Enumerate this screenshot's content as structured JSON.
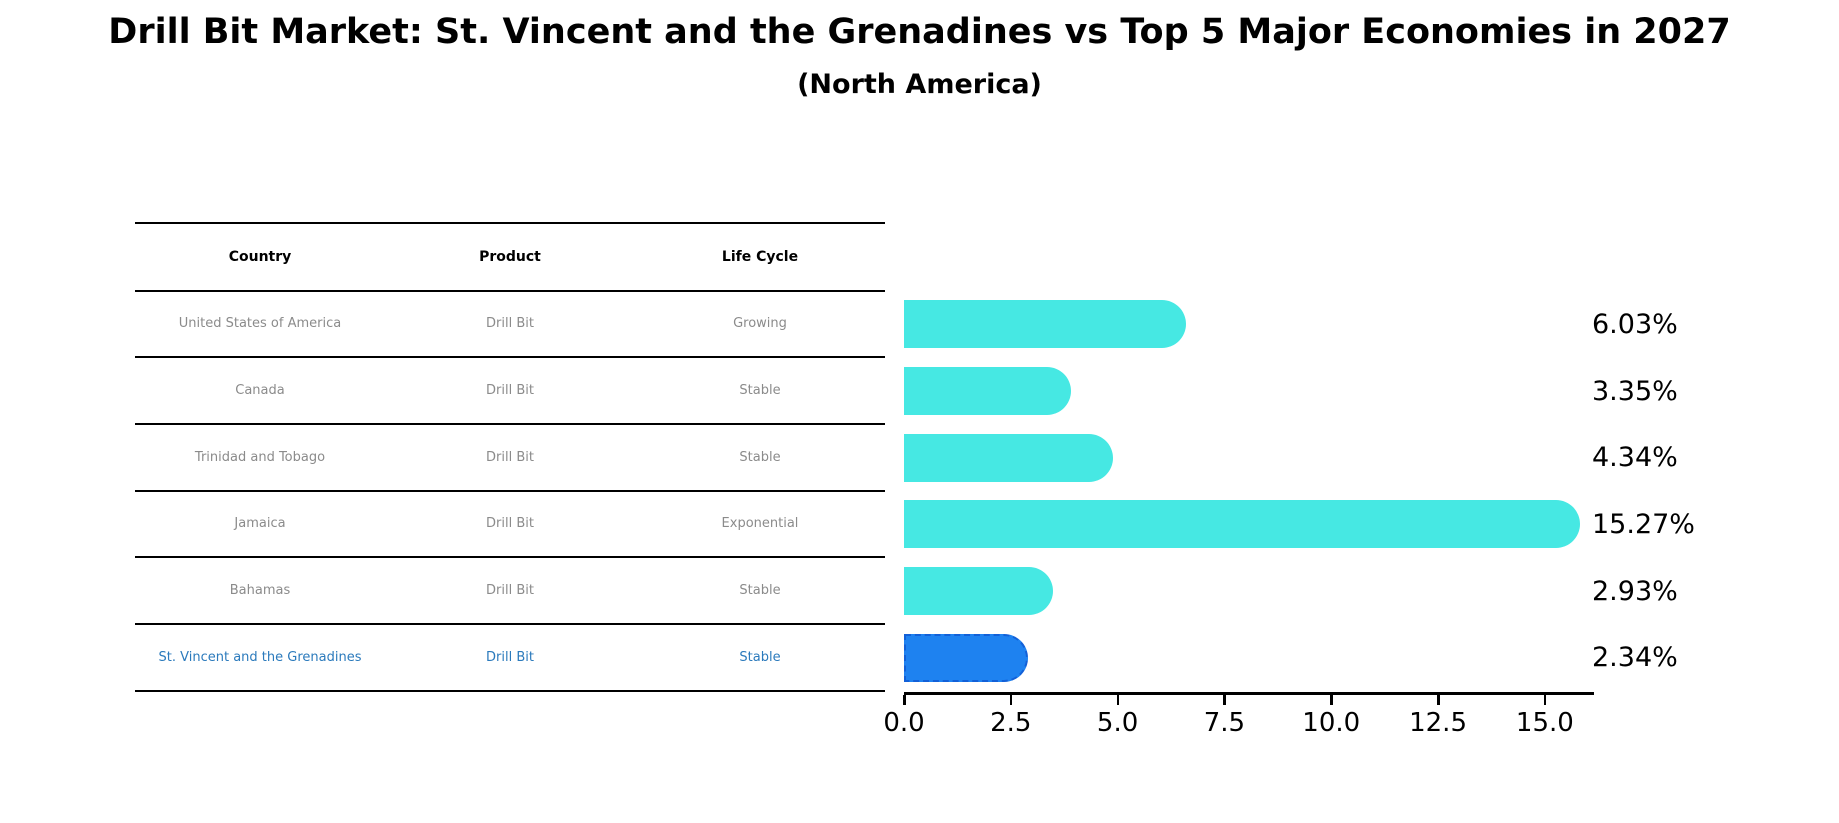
{
  "page": {
    "title": "Drill Bit Market: St. Vincent and the Grenadines vs Top 5 Major Economies in 2027",
    "subtitle": "(North America)"
  },
  "table": {
    "headers": [
      "Country",
      "Product",
      "Life Cycle"
    ],
    "rows": [
      {
        "country": "United States of America",
        "product": "Drill Bit",
        "life_cycle": "Growing",
        "highlight": false
      },
      {
        "country": "Canada",
        "product": "Drill Bit",
        "life_cycle": "Stable",
        "highlight": false
      },
      {
        "country": "Trinidad and Tobago",
        "product": "Drill Bit",
        "life_cycle": "Stable",
        "highlight": false
      },
      {
        "country": "Jamaica",
        "product": "Drill Bit",
        "life_cycle": "Exponential",
        "highlight": false
      },
      {
        "country": "Bahamas",
        "product": "Drill Bit",
        "life_cycle": "Stable",
        "highlight": false
      },
      {
        "country": "St. Vincent and the Grenadines",
        "product": "Drill Bit",
        "life_cycle": "Stable",
        "highlight": true
      }
    ]
  },
  "chart_data": {
    "type": "bar",
    "orientation": "horizontal",
    "title": "Drill Bit Market: St. Vincent and the Grenadines vs Top 5 Major Economies in 2027",
    "subtitle": "(North America)",
    "categories": [
      "United States of America",
      "Canada",
      "Trinidad and Tobago",
      "Jamaica",
      "Bahamas",
      "St. Vincent and the Grenadines"
    ],
    "values": [
      6.03,
      3.35,
      4.34,
      15.27,
      2.93,
      2.34
    ],
    "value_labels": [
      "6.03%",
      "3.35%",
      "4.34%",
      "15.27%",
      "2.93%",
      "2.34%"
    ],
    "unit": "%",
    "highlight_index": 5,
    "xlim": [
      0,
      16.15
    ],
    "x_ticks": [
      0.0,
      2.5,
      5.0,
      7.5,
      10.0,
      12.5,
      15.0
    ],
    "x_tick_labels": [
      "0.0",
      "2.5",
      "5.0",
      "7.5",
      "10.0",
      "12.5",
      "15.0"
    ],
    "grid": false,
    "legend": false,
    "colors": {
      "bar": "#46E8E3",
      "highlight_bar": "#1E82F0",
      "highlight_bar_border": "#1260D8",
      "highlight_text": "#2B7ABC",
      "table_text": "#8B8B8B",
      "table_header_text": "#000000",
      "axis": "#000000"
    }
  }
}
